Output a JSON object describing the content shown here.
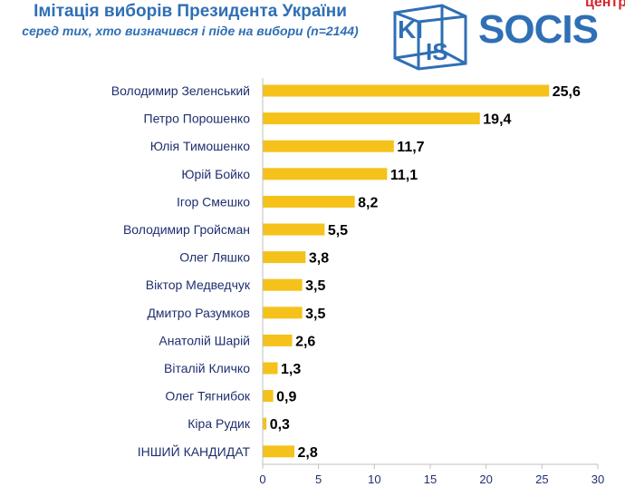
{
  "header": {
    "title": "Імітація виборів Президента України",
    "subtitle": "серед тих, хто визначився і піде на вибори (n=2144)"
  },
  "logos": {
    "kiis_top": "KI",
    "kiis_bottom": "IS",
    "socis": "SOCIS",
    "centre": "центр"
  },
  "colors": {
    "bar": "#f5c21b",
    "title": "#2f6fb5",
    "axis": "#bfbfbf",
    "label": "#1f2f6e",
    "value": "#000000"
  },
  "chart_data": {
    "type": "bar",
    "orientation": "horizontal",
    "categories": [
      "Володимир Зеленський",
      "Петро Порошенко",
      "Юлія Тимошенко",
      "Юрій Бойко",
      "Ігор Смешко",
      "Володимир Гройсман",
      "Олег Ляшко",
      "Віктор Медведчук",
      "Дмитро Разумков",
      "Анатолій Шарій",
      "Віталій Кличко",
      "Олег Тягнибок",
      "Кіра Рудик",
      "ІНШИЙ КАНДИДАТ"
    ],
    "values": [
      25.6,
      19.4,
      11.7,
      11.1,
      8.2,
      5.5,
      3.8,
      3.5,
      3.5,
      2.6,
      1.3,
      0.9,
      0.3,
      2.8
    ],
    "value_labels": [
      "25,6",
      "19,4",
      "11,7",
      "11,1",
      "8,2",
      "5,5",
      "3,8",
      "3,5",
      "3,5",
      "2,6",
      "1,3",
      "0,9",
      "0,3",
      "2,8"
    ],
    "x_ticks": [
      "0",
      "5",
      "10",
      "15",
      "20",
      "25",
      "30"
    ],
    "xlim": [
      0,
      30
    ],
    "grid": false,
    "legend": "none"
  }
}
